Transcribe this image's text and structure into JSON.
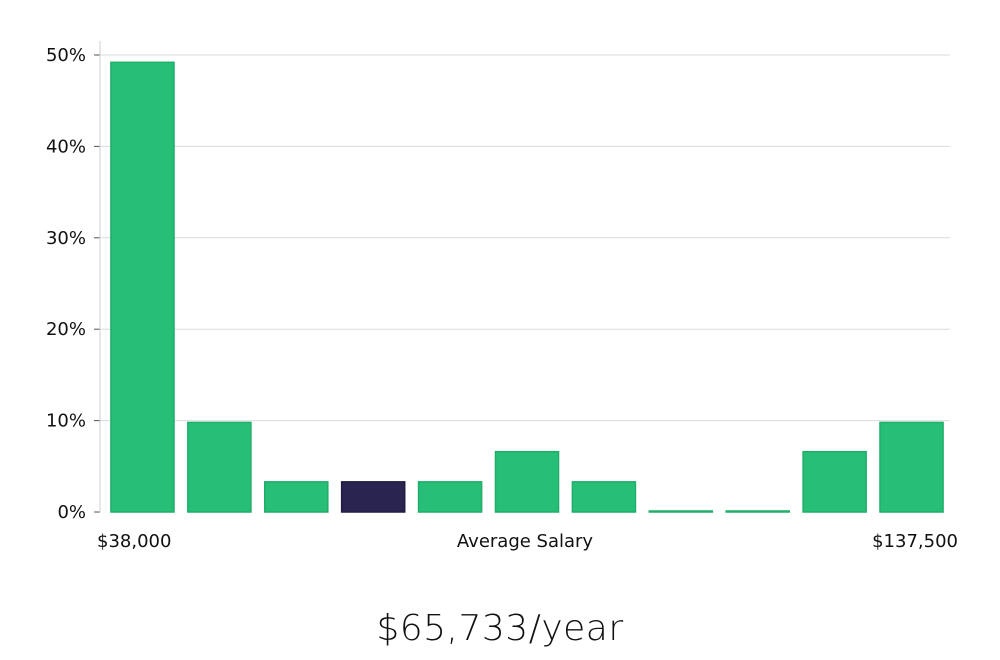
{
  "chart_data": {
    "type": "bar",
    "categories": [
      "1",
      "2",
      "3",
      "4",
      "5",
      "6",
      "7",
      "8",
      "9",
      "10",
      "11"
    ],
    "values": [
      49.2,
      9.8,
      3.3,
      3.3,
      3.3,
      6.6,
      3.3,
      0,
      0,
      6.6,
      9.8
    ],
    "highlight_index": 3,
    "ylim": [
      0,
      50
    ],
    "yticks": [
      0,
      10,
      20,
      30,
      40,
      50
    ],
    "ytick_labels": [
      "0%",
      "10%",
      "20%",
      "30%",
      "40%",
      "50%"
    ],
    "x_min_label": "$38,000",
    "x_max_label": "$137,500",
    "xlabel": "Average Salary",
    "grid": true,
    "colors": {
      "bar": "#27bf77",
      "bar_edge": "#1fae69",
      "highlight": "#2a2550",
      "grid": "#d9d9df",
      "axis": "#cfcfd6"
    }
  },
  "salary": {
    "display": "$65,733/year"
  }
}
